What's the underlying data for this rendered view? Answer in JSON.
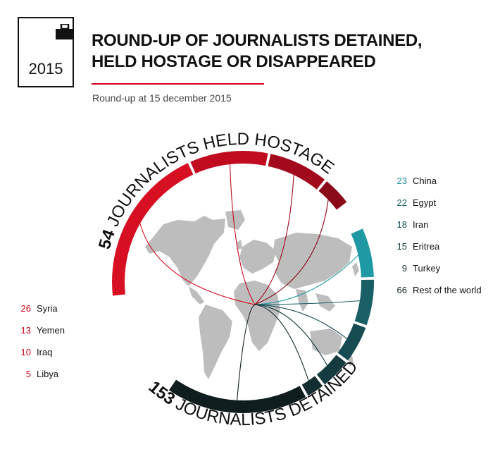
{
  "header": {
    "year": "2015",
    "title_line1": "ROUND-UP OF JOURNALISTS DETAINED,",
    "title_line2": "HELD HOSTAGE OR DISAPPEARED",
    "subtitle": "Round-up at 15 december 2015"
  },
  "colors": {
    "hostage": [
      "#d60f22",
      "#c10b1f",
      "#a3091c",
      "#8a0a1a",
      "#6e0a16"
    ],
    "detained": [
      "#1f9aa5",
      "#1a5f66",
      "#174b52",
      "#153b40",
      "#132d31",
      "#0f1d1f"
    ],
    "red_text": "#d0021b",
    "teal_text": "#1a8a99",
    "map": "#bdbdbd"
  },
  "chart_data": {
    "type": "radial-bar",
    "groups": [
      {
        "label_num": "54",
        "label_text": "JOURNALISTS HELD HOSTAGE",
        "total": 54,
        "categories": [
          "Syria",
          "Yemen",
          "Iraq",
          "Libya"
        ],
        "values": [
          26,
          13,
          10,
          5
        ]
      },
      {
        "label_num": "153",
        "label_text": "JOURNALISTS DETAINED",
        "total": 153,
        "categories": [
          "China",
          "Egypt",
          "Iran",
          "Eritrea",
          "Turkey",
          "Rest of the world"
        ],
        "values": [
          23,
          22,
          18,
          15,
          9,
          66
        ]
      }
    ]
  }
}
